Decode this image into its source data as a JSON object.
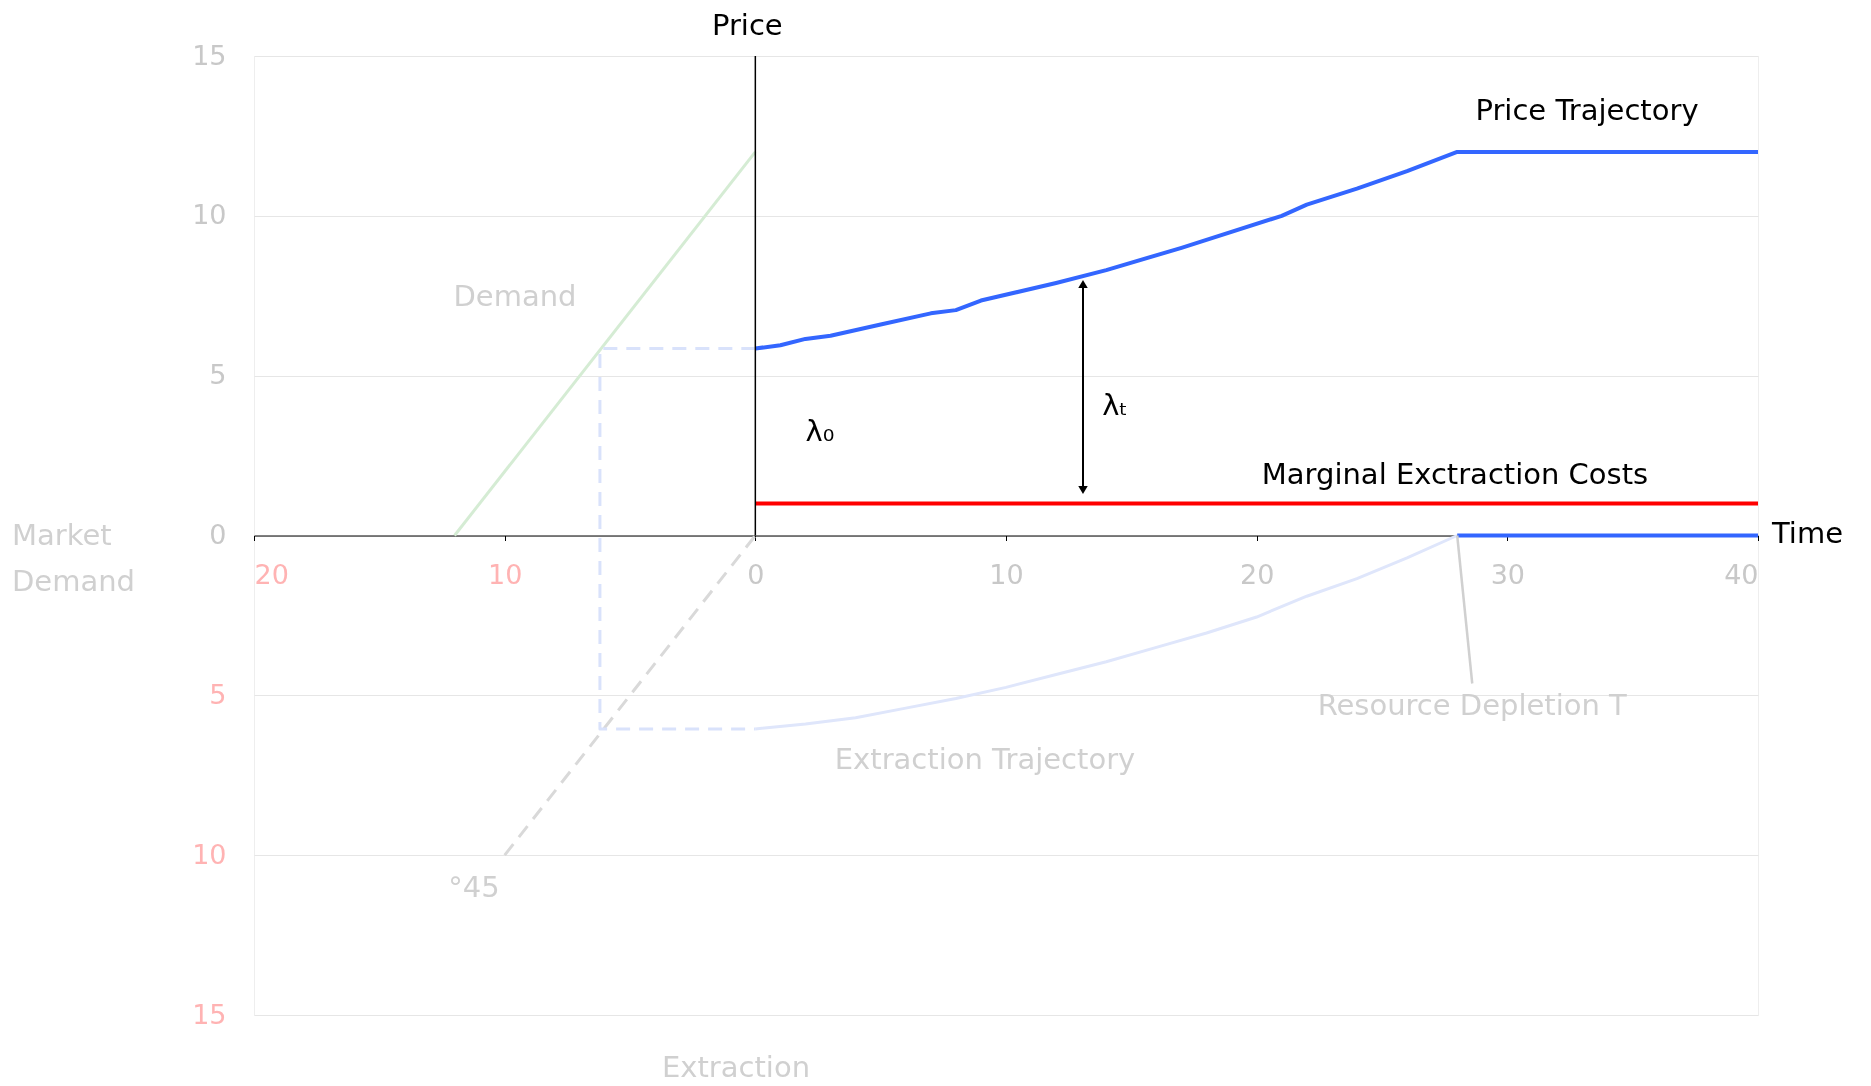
{
  "chart_data": {
    "type": "line",
    "xlabel": "Time",
    "ylabel": "Price",
    "xlim": [
      -20,
      40
    ],
    "ylim": [
      -15,
      15
    ],
    "xticks": [
      {
        "value": -20,
        "label": "20"
      },
      {
        "value": -10,
        "label": "10"
      },
      0,
      10,
      20,
      30,
      40
    ],
    "yticks": [
      {
        "value": -15,
        "label": "15"
      },
      {
        "value": -10,
        "label": "10"
      },
      {
        "value": -5,
        "label": "5"
      },
      0,
      5,
      10,
      15
    ],
    "grid": "y",
    "series": [
      {
        "color": "#3366ff",
        "x": [
          0,
          1,
          2,
          3,
          5,
          7,
          8,
          9,
          12,
          14,
          17,
          21,
          22,
          24,
          26,
          28,
          40
        ],
        "values": [
          5.85,
          5.95,
          6.15,
          6.25,
          6.6,
          6.95,
          7.05,
          7.35,
          7.9,
          8.3,
          9.0,
          10.0,
          10.35,
          10.85,
          11.4,
          12,
          12
        ]
      },
      {
        "color": "#ff0000",
        "x": [
          0,
          40
        ],
        "values": [
          1,
          1
        ]
      },
      {
        "color": "#d5ecd4",
        "x": [
          -12,
          0
        ],
        "values": [
          0,
          12
        ]
      },
      {
        "color": "#dfe6fb",
        "x": [
          0,
          2,
          4,
          6,
          8,
          10,
          12,
          14,
          16,
          18,
          20,
          22,
          24,
          26,
          28
        ],
        "values": [
          -6.05,
          -5.9,
          -5.7,
          -5.4,
          -5.1,
          -4.75,
          -4.35,
          -3.95,
          -3.5,
          -3.05,
          -2.55,
          -1.9,
          -1.35,
          -0.7,
          0
        ]
      },
      {
        "color": "#3366ff",
        "x": [
          28,
          40
        ],
        "values": [
          0,
          0
        ]
      },
      {
        "color": "#d9d9d9",
        "line_style": "dashed",
        "x": [
          -10,
          0
        ],
        "values": [
          -10,
          0
        ]
      },
      {
        "color": "#d9e2fb",
        "line_style": "dashed",
        "x": [
          0,
          -6.2,
          -6.2,
          0
        ],
        "values": [
          5.85,
          5.85,
          -6.05,
          -6.05
        ]
      }
    ],
    "ref_lines": [
      {
        "axis": "x",
        "value": 0,
        "color": "#000000"
      }
    ],
    "annotations": [
      "Market Demand",
      "Extraction",
      "Demand",
      "°45",
      "Extraction Trajectory",
      {
        "text": "Resource Depletion T",
        "x": 28,
        "y": 0
      },
      "Price Trajectory",
      "Marginal Exctraction Costs",
      "λ₀",
      "λₜ"
    ]
  }
}
